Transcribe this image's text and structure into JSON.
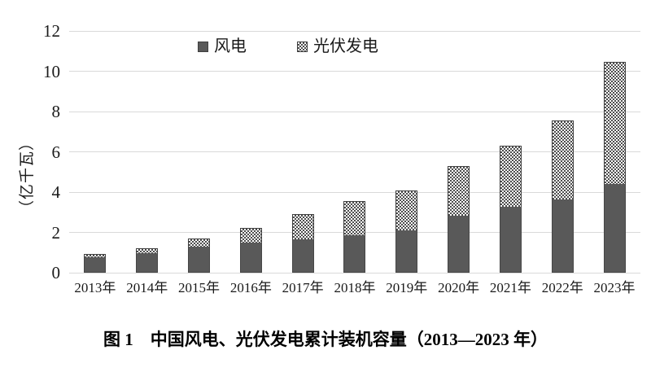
{
  "chart_data": {
    "type": "bar",
    "stacked": true,
    "title": "",
    "ylabel": "（亿千瓦）",
    "xlabel": "",
    "categories": [
      "2013年",
      "2014年",
      "2015年",
      "2016年",
      "2017年",
      "2018年",
      "2019年",
      "2020年",
      "2021年",
      "2022年",
      "2023年"
    ],
    "series": [
      {
        "name": "风电",
        "values": [
          0.77,
          0.96,
          1.29,
          1.49,
          1.64,
          1.84,
          2.1,
          2.81,
          3.28,
          3.65,
          4.41
        ],
        "style": "solid",
        "color": "#595959"
      },
      {
        "name": "光伏发电",
        "values": [
          0.19,
          0.28,
          0.43,
          0.77,
          1.3,
          1.74,
          2.04,
          2.53,
          3.06,
          3.93,
          6.09
        ],
        "style": "checker-pattern",
        "pattern_color": "#4d4d4d",
        "pattern_background": "#ffffff"
      }
    ],
    "yticks": [
      0,
      2,
      4,
      6,
      8,
      10,
      12
    ],
    "ylim": [
      0,
      12
    ],
    "grid": true,
    "gridline_color": "#d9d9d9",
    "legend_position": "top-center"
  },
  "caption": "图 1　中国风电、光伏发电累计装机容量（2013—2023 年）",
  "colors": {
    "background": "#ffffff",
    "text": "#1a1a1a",
    "wind_bar": "#595959",
    "solar_pattern_dot": "#4d4d4d",
    "gridline": "#d9d9d9"
  }
}
